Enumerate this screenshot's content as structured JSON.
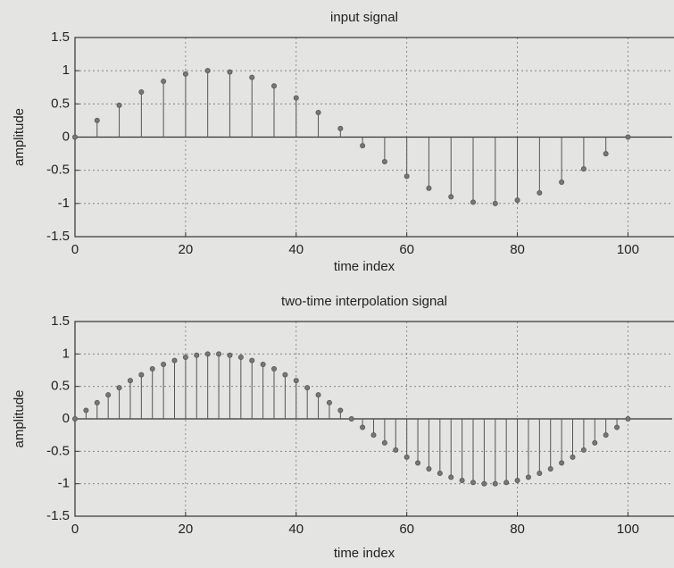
{
  "chart_data": [
    {
      "type": "stem",
      "title": "input signal",
      "x_label": "time index",
      "y_label": "amplitude",
      "x": [
        0,
        4,
        8,
        12,
        16,
        20,
        24,
        28,
        32,
        36,
        40,
        44,
        48,
        52,
        56,
        60,
        64,
        68,
        72,
        76,
        80,
        84,
        88,
        92,
        96,
        100
      ],
      "values": [
        0,
        0.25,
        0.48,
        0.68,
        0.84,
        0.95,
        1,
        0.98,
        0.9,
        0.77,
        0.59,
        0.37,
        0.13,
        -0.13,
        -0.37,
        -0.59,
        -0.77,
        -0.9,
        -0.98,
        -1,
        -0.95,
        -0.84,
        -0.68,
        -0.48,
        -0.25,
        0
      ],
      "color": "#555555",
      "xlim": [
        0,
        108
      ],
      "xticks": [
        0,
        20,
        40,
        60,
        80,
        100
      ],
      "ylim": [
        -1.5,
        1.5
      ],
      "yticks": [
        -1.5,
        -1,
        -0.5,
        0,
        0.5,
        1,
        1.5
      ],
      "grid": true
    },
    {
      "type": "stem",
      "title": "two-time interpolation signal",
      "x_label": "time index",
      "y_label": "amplitude",
      "x": [
        0,
        2,
        4,
        6,
        8,
        10,
        12,
        14,
        16,
        18,
        20,
        22,
        24,
        26,
        28,
        30,
        32,
        34,
        36,
        38,
        40,
        42,
        44,
        46,
        48,
        50,
        52,
        54,
        56,
        58,
        60,
        62,
        64,
        66,
        68,
        70,
        72,
        74,
        76,
        78,
        80,
        82,
        84,
        86,
        88,
        90,
        92,
        94,
        96,
        98,
        100
      ],
      "values": [
        0,
        0.13,
        0.25,
        0.37,
        0.48,
        0.59,
        0.68,
        0.77,
        0.84,
        0.9,
        0.95,
        0.98,
        1,
        1,
        0.98,
        0.95,
        0.9,
        0.84,
        0.77,
        0.68,
        0.59,
        0.48,
        0.37,
        0.25,
        0.13,
        0,
        -0.13,
        -0.25,
        -0.37,
        -0.48,
        -0.59,
        -0.68,
        -0.77,
        -0.84,
        -0.9,
        -0.95,
        -0.98,
        -1,
        -1,
        -0.98,
        -0.95,
        -0.9,
        -0.84,
        -0.77,
        -0.68,
        -0.59,
        -0.48,
        -0.37,
        -0.25,
        -0.13,
        0
      ],
      "color": "#555555",
      "xlim": [
        0,
        108
      ],
      "xticks": [
        0,
        20,
        40,
        60,
        80,
        100
      ],
      "ylim": [
        -1.5,
        1.5
      ],
      "yticks": [
        -1.5,
        -1,
        -0.5,
        0,
        0.5,
        1,
        1.5
      ],
      "grid": true
    }
  ]
}
